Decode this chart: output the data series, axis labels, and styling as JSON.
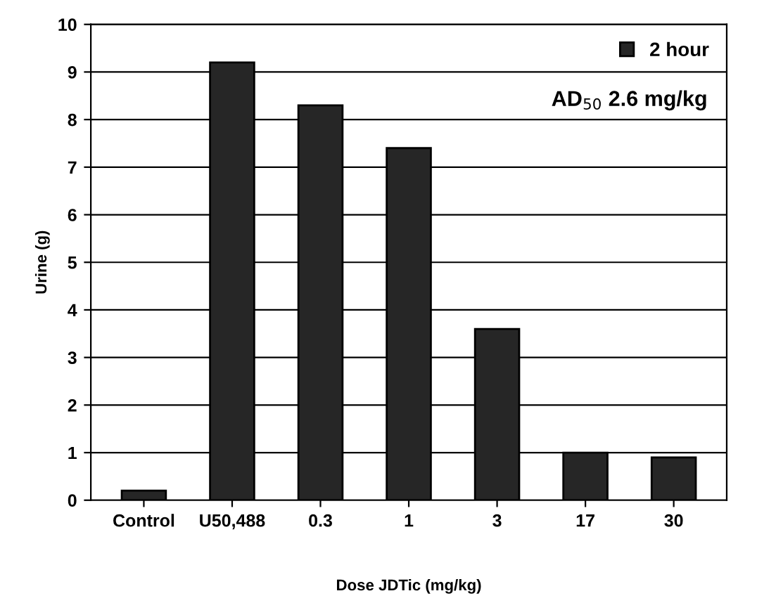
{
  "chart_data": {
    "type": "bar",
    "xlabel": "Dose JDTic (mg/kg)",
    "ylabel": "Urine (g)",
    "categories": [
      "Control",
      "U50,488",
      "0.3",
      "1",
      "3",
      "17",
      "30"
    ],
    "series": [
      {
        "name": "2 hour",
        "color": "#262626",
        "values": [
          0.2,
          9.2,
          8.3,
          7.4,
          3.6,
          1.0,
          0.9
        ]
      }
    ],
    "ylim": [
      0,
      10
    ],
    "yticks": [
      0,
      1,
      2,
      3,
      4,
      5,
      6,
      7,
      8,
      9,
      10
    ],
    "grid": "y",
    "legend": "top right",
    "annotations": [
      "AD$_{50}$ 2.6 mg/kg"
    ]
  }
}
